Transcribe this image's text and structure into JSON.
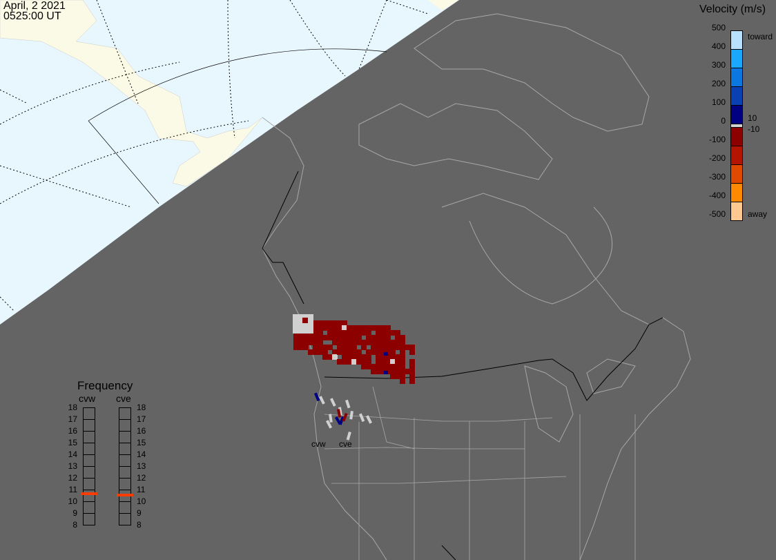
{
  "header": {
    "date": "April, 2 2021",
    "time": "0525:00 UT"
  },
  "colorbar": {
    "title": "Velocity (m/s)",
    "ticks": [
      "500",
      "400",
      "300",
      "200",
      "100",
      "0",
      "-100",
      "-200",
      "-300",
      "-400",
      "-500"
    ],
    "toward_label": "toward",
    "away_label": "away",
    "inner_pos": "10",
    "inner_neg": "-10",
    "colors_top_to_bottom": [
      "#b8e0ff",
      "#1aa8ff",
      "#0a78e0",
      "#0a40b4",
      "#000080",
      "#d0d0d0",
      "#8c0000",
      "#b41400",
      "#e04a00",
      "#ff8a00",
      "#ffc890"
    ]
  },
  "frequency": {
    "title": "Frequency",
    "radars": [
      {
        "name": "cvw",
        "value_mhz": 10.7
      },
      {
        "name": "cve",
        "value_mhz": 10.6
      }
    ],
    "ticks": [
      "18",
      "17",
      "16",
      "15",
      "14",
      "13",
      "12",
      "11",
      "10",
      "9",
      "8"
    ],
    "range": [
      8,
      18
    ],
    "marker_color": "#ff3c00"
  },
  "map": {
    "radar_labels": [
      "cvw",
      "cve"
    ],
    "colors": {
      "night": "#646464",
      "day_ocean": "#e8f6fe",
      "day_land": "#fafae6",
      "outline": "#a8a8a8",
      "scatter_red": "#8c0000",
      "ground_scatter": "#d0d0d0",
      "scatter_blue": "#000080"
    }
  }
}
